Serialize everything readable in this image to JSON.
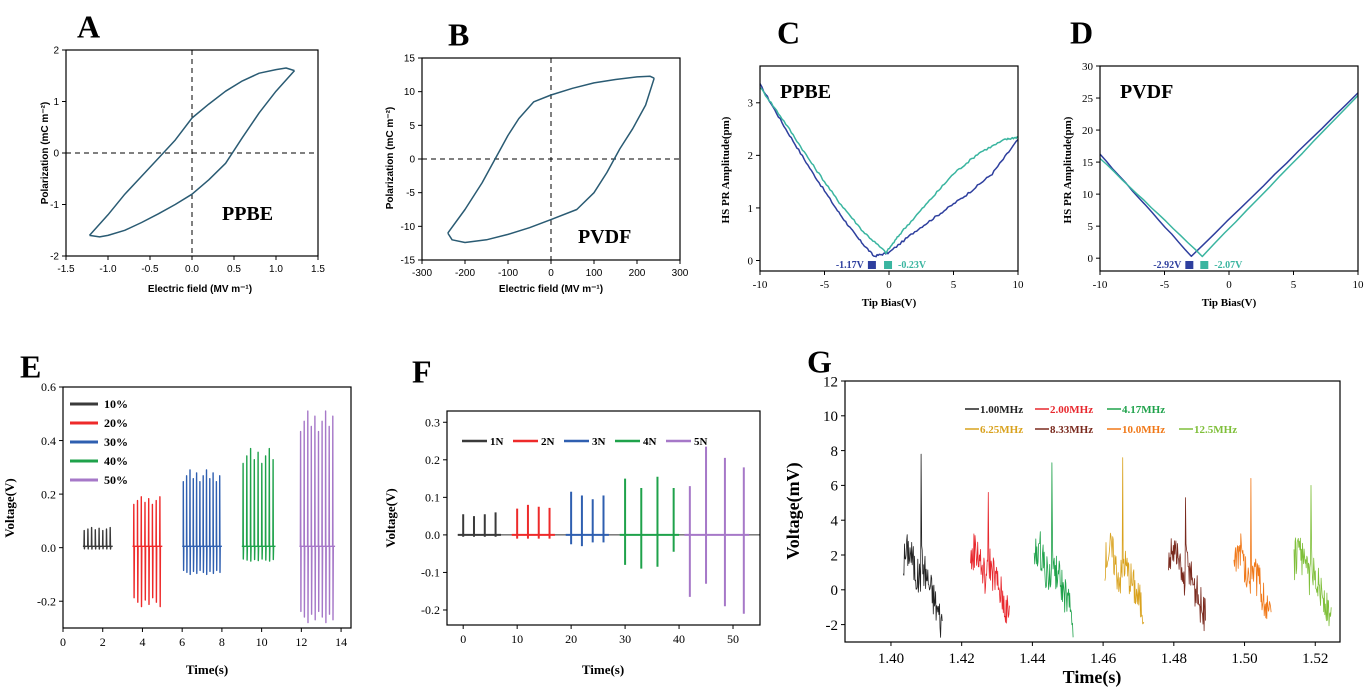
{
  "chart_data": [
    {
      "panel": "A",
      "type": "line",
      "xlabel": "Electric field (MV m⁻¹)",
      "ylabel": "Polarization (mC m⁻²)",
      "xlim": [
        -1.5,
        1.5
      ],
      "ylim": [
        -2,
        2
      ],
      "xticks": [
        -1.5,
        -1.0,
        -0.5,
        0,
        0.5,
        1.0,
        1.5
      ],
      "xticklabels": [
        "-1.5",
        "-1.0",
        "-0.5",
        "0.0",
        "0.5",
        "1.0",
        "1.5"
      ],
      "yticks": [
        -2,
        -1,
        0,
        1,
        2
      ],
      "yticklabels": [
        "-2",
        "-1",
        "0",
        "1",
        "2"
      ],
      "annotation": "PPBE",
      "series": [
        {
          "color": "#2a5b73",
          "points": [
            [
              -1.22,
              -1.6
            ],
            [
              -1.0,
              -1.2
            ],
            [
              -0.8,
              -0.8
            ],
            [
              -0.6,
              -0.45
            ],
            [
              -0.4,
              -0.1
            ],
            [
              -0.2,
              0.25
            ],
            [
              0.0,
              0.68
            ],
            [
              0.2,
              0.95
            ],
            [
              0.4,
              1.2
            ],
            [
              0.6,
              1.4
            ],
            [
              0.8,
              1.55
            ],
            [
              1.0,
              1.62
            ],
            [
              1.12,
              1.65
            ],
            [
              1.22,
              1.6
            ]
          ]
        },
        {
          "color": "#2a5b73",
          "points": [
            [
              1.22,
              1.6
            ],
            [
              1.0,
              1.2
            ],
            [
              0.8,
              0.78
            ],
            [
              0.6,
              0.3
            ],
            [
              0.4,
              -0.2
            ],
            [
              0.2,
              -0.52
            ],
            [
              0.0,
              -0.8
            ],
            [
              -0.2,
              -1.0
            ],
            [
              -0.4,
              -1.18
            ],
            [
              -0.6,
              -1.35
            ],
            [
              -0.8,
              -1.5
            ],
            [
              -1.0,
              -1.6
            ],
            [
              -1.1,
              -1.63
            ],
            [
              -1.22,
              -1.6
            ]
          ]
        }
      ]
    },
    {
      "panel": "B",
      "type": "line",
      "xlabel": "Electric field (MV m⁻¹)",
      "ylabel": "Polarization (mC m⁻²)",
      "xlim": [
        -300,
        300
      ],
      "ylim": [
        -15,
        15
      ],
      "xticks": [
        -300,
        -200,
        -100,
        0,
        100,
        200,
        300
      ],
      "xticklabels": [
        "-300",
        "-200",
        "-100",
        "0",
        "100",
        "200",
        "300"
      ],
      "yticks": [
        -15,
        -10,
        -5,
        0,
        5,
        10,
        15
      ],
      "yticklabels": [
        "-15",
        "-10",
        "-5",
        "0",
        "5",
        "10",
        "15"
      ],
      "annotation": "PVDF",
      "series": [
        {
          "color": "#2a5b73",
          "points": [
            [
              -240,
              -11
            ],
            [
              -200,
              -7.5
            ],
            [
              -160,
              -3.5
            ],
            [
              -130,
              0
            ],
            [
              -100,
              3.5
            ],
            [
              -75,
              6
            ],
            [
              -40,
              8.5
            ],
            [
              0,
              9.5
            ],
            [
              50,
              10.5
            ],
            [
              100,
              11.3
            ],
            [
              150,
              11.8
            ],
            [
              200,
              12.2
            ],
            [
              230,
              12.3
            ],
            [
              240,
              12
            ]
          ]
        },
        {
          "color": "#2a5b73",
          "points": [
            [
              240,
              12
            ],
            [
              220,
              8
            ],
            [
              190,
              4.5
            ],
            [
              160,
              1.5
            ],
            [
              130,
              -2
            ],
            [
              100,
              -5
            ],
            [
              60,
              -7.5
            ],
            [
              0,
              -9
            ],
            [
              -50,
              -10.2
            ],
            [
              -100,
              -11.2
            ],
            [
              -150,
              -12
            ],
            [
              -200,
              -12.4
            ],
            [
              -230,
              -12
            ],
            [
              -240,
              -11
            ]
          ]
        }
      ]
    },
    {
      "panel": "C",
      "type": "line",
      "xlabel": "Tip Bias(V)",
      "ylabel": "HS PR Amplitude(pm)",
      "xlim": [
        -10,
        10
      ],
      "ylim": [
        -0.2,
        3.7
      ],
      "xticks": [
        -10,
        -5,
        0,
        5,
        10
      ],
      "xticklabels": [
        "-10",
        "-5",
        "0",
        "5",
        "10"
      ],
      "yticks": [
        0,
        1,
        2,
        3
      ],
      "yticklabels": [
        "0",
        "1",
        "2",
        "3"
      ],
      "annotation": "PPBE",
      "markers": [
        {
          "x": -1.17,
          "label": "-1.17V",
          "color": "#2e3f9e"
        },
        {
          "x": -0.23,
          "label": "-0.23V",
          "color": "#3ab5a0"
        }
      ],
      "series": [
        {
          "color": "#2e3f9e",
          "points": [
            [
              -10,
              3.35
            ],
            [
              -8,
              2.5
            ],
            [
              -6,
              1.7
            ],
            [
              -4,
              0.95
            ],
            [
              -2.5,
              0.45
            ],
            [
              -1.17,
              0.08
            ],
            [
              0,
              0.15
            ],
            [
              2,
              0.55
            ],
            [
              4,
              0.9
            ],
            [
              6,
              1.25
            ],
            [
              8,
              1.65
            ],
            [
              10,
              2.3
            ]
          ]
        },
        {
          "color": "#3ab5a0",
          "points": [
            [
              -10,
              3.3
            ],
            [
              -8,
              2.6
            ],
            [
              -6,
              1.85
            ],
            [
              -4,
              1.15
            ],
            [
              -2,
              0.55
            ],
            [
              -0.23,
              0.15
            ],
            [
              1,
              0.55
            ],
            [
              3,
              1.1
            ],
            [
              5,
              1.65
            ],
            [
              7,
              2.05
            ],
            [
              9,
              2.3
            ],
            [
              10,
              2.35
            ]
          ]
        }
      ]
    },
    {
      "panel": "D",
      "type": "line",
      "xlabel": "Tip Bias(V)",
      "ylabel": "HS PR Amplitude(pm)",
      "xlim": [
        -10,
        10
      ],
      "ylim": [
        -2,
        30
      ],
      "xticks": [
        -10,
        -5,
        0,
        5,
        10
      ],
      "xticklabels": [
        "-10",
        "-5",
        "0",
        "5",
        "10"
      ],
      "yticks": [
        0,
        5,
        10,
        15,
        20,
        25,
        30
      ],
      "yticklabels": [
        "0",
        "5",
        "10",
        "15",
        "20",
        "25",
        "30"
      ],
      "annotation": "PVDF",
      "markers": [
        {
          "x": -2.92,
          "label": "-2.92V",
          "color": "#2e3f9e"
        },
        {
          "x": -2.07,
          "label": "-2.07V",
          "color": "#3ab5a0"
        }
      ],
      "series": [
        {
          "color": "#2e3f9e",
          "points": [
            [
              -10,
              16.2
            ],
            [
              -2.92,
              0.3
            ],
            [
              10,
              25.8
            ]
          ]
        },
        {
          "color": "#3ab5a0",
          "points": [
            [
              -10,
              15.6
            ],
            [
              -2.07,
              0.3
            ],
            [
              10,
              25.4
            ]
          ]
        }
      ]
    },
    {
      "panel": "E",
      "type": "line",
      "xlabel": "Time(s)",
      "ylabel": "Voltage(V)",
      "xlim": [
        0,
        14.5
      ],
      "ylim": [
        -0.3,
        0.6
      ],
      "xticks": [
        0,
        2,
        4,
        6,
        8,
        10,
        12,
        14
      ],
      "xticklabels": [
        "0",
        "2",
        "4",
        "6",
        "8",
        "10",
        "12",
        "14"
      ],
      "yticks": [
        -0.2,
        0.0,
        0.2,
        0.4,
        0.6
      ],
      "yticklabels": [
        "-0.2",
        "0.0",
        "0.2",
        "0.4",
        "0.6"
      ],
      "legend": "top-left",
      "series": [
        {
          "name": "10%",
          "color": "#3a3a3a",
          "t0": 1.0,
          "t1": 2.5,
          "peaks": 8,
          "up": 0.075,
          "down": -0.005
        },
        {
          "name": "20%",
          "color": "#ee2a2a",
          "t0": 3.5,
          "t1": 5.0,
          "peaks": 8,
          "up": 0.19,
          "down": -0.22
        },
        {
          "name": "30%",
          "color": "#2f5fb0",
          "t0": 6.0,
          "t1": 8.0,
          "peaks": 12,
          "up": 0.29,
          "down": -0.1
        },
        {
          "name": "40%",
          "color": "#1fa24b",
          "t0": 9.0,
          "t1": 10.7,
          "peaks": 9,
          "up": 0.37,
          "down": -0.05
        },
        {
          "name": "50%",
          "color": "#a678c8",
          "t0": 11.9,
          "t1": 13.7,
          "peaks": 10,
          "up": 0.51,
          "down": -0.28
        }
      ]
    },
    {
      "panel": "F",
      "type": "line",
      "xlabel": "Time(s)",
      "ylabel": "Voltage(V)",
      "xlim": [
        -3,
        55
      ],
      "ylim": [
        -0.24,
        0.33
      ],
      "xticks": [
        0,
        10,
        20,
        30,
        40,
        50
      ],
      "xticklabels": [
        "0",
        "10",
        "20",
        "30",
        "40",
        "50"
      ],
      "yticks": [
        -0.2,
        -0.1,
        0.0,
        0.1,
        0.2,
        0.3
      ],
      "yticklabels": [
        "-0.2",
        "-0.1",
        "0.0",
        "0.1",
        "0.2",
        "0.3"
      ],
      "legend": "top",
      "series": [
        {
          "name": "1N",
          "color": "#3a3a3a",
          "spikes": [
            [
              0,
              0.055,
              -0.005
            ],
            [
              2,
              0.05,
              -0.005
            ],
            [
              4,
              0.055,
              -0.005
            ],
            [
              6,
              0.06,
              -0.005
            ]
          ]
        },
        {
          "name": "2N",
          "color": "#ee2a2a",
          "spikes": [
            [
              10,
              0.07,
              -0.01
            ],
            [
              12,
              0.08,
              -0.01
            ],
            [
              14,
              0.075,
              -0.01
            ],
            [
              16,
              0.072,
              -0.01
            ]
          ]
        },
        {
          "name": "3N",
          "color": "#2f5fb0",
          "spikes": [
            [
              20,
              0.115,
              -0.025
            ],
            [
              22,
              0.105,
              -0.03
            ],
            [
              24,
              0.095,
              -0.02
            ],
            [
              26,
              0.105,
              -0.02
            ]
          ]
        },
        {
          "name": "4N",
          "color": "#1fa24b",
          "spikes": [
            [
              30,
              0.15,
              -0.08
            ],
            [
              33,
              0.125,
              -0.09
            ],
            [
              36,
              0.155,
              -0.085
            ],
            [
              39,
              0.125,
              -0.045
            ]
          ]
        },
        {
          "name": "5N",
          "color": "#a678c8",
          "spikes": [
            [
              42,
              0.13,
              -0.165
            ],
            [
              45,
              0.235,
              -0.13
            ],
            [
              48.5,
              0.205,
              -0.19
            ],
            [
              52,
              0.18,
              -0.21
            ]
          ]
        }
      ]
    },
    {
      "panel": "G",
      "type": "line",
      "xlabel": "Time(s)",
      "ylabel": "Voltage(mV)",
      "xlim": [
        1.387,
        1.527
      ],
      "ylim": [
        -3,
        12
      ],
      "xticks": [
        1.4,
        1.42,
        1.44,
        1.46,
        1.48,
        1.5,
        1.52
      ],
      "xticklabels": [
        "1.40",
        "1.42",
        "1.44",
        "1.46",
        "1.48",
        "1.50",
        "1.52"
      ],
      "yticks": [
        -2,
        0,
        2,
        4,
        6,
        8,
        10,
        12
      ],
      "yticklabels": [
        "-2",
        "0",
        "2",
        "4",
        "6",
        "8",
        "10",
        "12"
      ],
      "legend": "top",
      "series": [
        {
          "name": "1.00MHz",
          "color": "#222222",
          "t0": 1.4035,
          "t1": 1.4145,
          "peak": 7.8,
          "low": -2.0
        },
        {
          "name": "2.00MHz",
          "color": "#e8282e",
          "t0": 1.4225,
          "t1": 1.4335,
          "peak": 5.6,
          "low": -1.6
        },
        {
          "name": "4.17MHz",
          "color": "#1fa24b",
          "t0": 1.4405,
          "t1": 1.4515,
          "peak": 7.3,
          "low": -1.7
        },
        {
          "name": "6.25MHz",
          "color": "#d9a21e",
          "t0": 1.4605,
          "t1": 1.4715,
          "peak": 7.6,
          "low": -1.3
        },
        {
          "name": "8.33MHz",
          "color": "#7a2a1e",
          "t0": 1.4785,
          "t1": 1.489,
          "peak": 5.3,
          "low": -1.7
        },
        {
          "name": "10.0MHz",
          "color": "#f07818",
          "t0": 1.497,
          "t1": 1.5075,
          "peak": 6.4,
          "low": -1.7
        },
        {
          "name": "12.5MHz",
          "color": "#7fbf3a",
          "t0": 1.514,
          "t1": 1.5245,
          "peak": 6.0,
          "low": -1.9
        }
      ]
    }
  ]
}
